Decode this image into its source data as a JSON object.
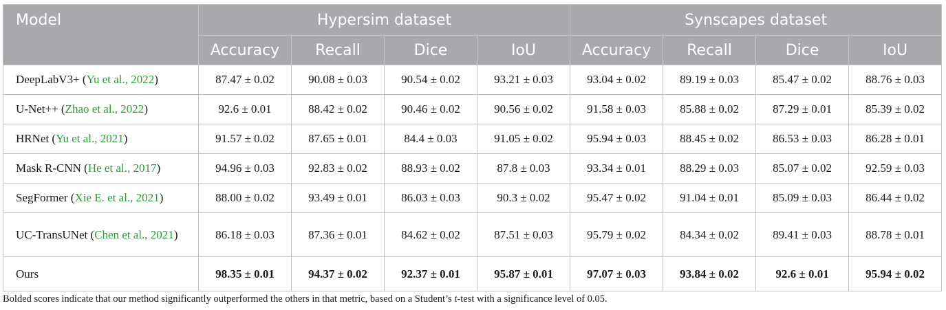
{
  "header": {
    "model": "Model",
    "groups": [
      "Hypersim dataset",
      "Synscapes dataset"
    ],
    "metrics": [
      "Accuracy",
      "Recall",
      "Dice",
      "IoU"
    ]
  },
  "rows": [
    {
      "name": "DeepLabV3+",
      "cite": "Yu et al., 2022",
      "cite_pre": "(",
      "cite_post": ")",
      "values": [
        "87.47 ± 0.02",
        "90.08 ± 0.03",
        "90.54 ± 0.02",
        "93.21 ± 0.03",
        "93.04 ± 0.02",
        "89.19 ± 0.03",
        "85.47 ± 0.02",
        "88.76 ± 0.03"
      ]
    },
    {
      "name": "U-Net++",
      "cite": "Zhao et al., 2022",
      "cite_pre": "(",
      "cite_post": ")",
      "values": [
        "92.6 ± 0.01",
        "88.42 ± 0.02",
        "90.46 ± 0.02",
        "90.56 ± 0.02",
        "91.58 ± 0.03",
        "85.88 ± 0.02",
        "87.29 ± 0.01",
        "85.39 ± 0.02"
      ]
    },
    {
      "name": "HRNet",
      "cite": "Yu et al., 2021",
      "cite_pre": "(",
      "cite_post": ")",
      "values": [
        "91.57 ± 0.02",
        "87.65 ± 0.01",
        "84.4 ± 0.03",
        "91.05 ± 0.02",
        "95.94 ± 0.03",
        "88.45 ± 0.02",
        "86.53 ± 0.03",
        "86.28 ± 0.01"
      ]
    },
    {
      "name": "Mask R-CNN",
      "cite": "He et al., 2017",
      "cite_pre": "(",
      "cite_post": ")",
      "values": [
        "94.96 ± 0.03",
        "92.83 ± 0.02",
        "88.93 ± 0.02",
        "87.8 ± 0.03",
        "93.34 ± 0.01",
        "88.29 ± 0.03",
        "85.07 ± 0.02",
        "92.59 ± 0.03"
      ]
    },
    {
      "name": "SegFormer",
      "cite": "Xie E. et al., 2021",
      "cite_pre": "(",
      "cite_post": ")",
      "values": [
        "88.00 ± 0.02",
        "93.49 ± 0.01",
        "86.03 ± 0.03",
        "90.3 ± 0.02",
        "95.47 ± 0.02",
        "91.04 ± 0.01",
        "85.09 ± 0.03",
        "86.44 ± 0.02"
      ]
    },
    {
      "name": "UC-TransUNet",
      "cite": "Chen et al., 2021",
      "cite_pre": "(",
      "cite_post": ")",
      "values": [
        "86.18 ± 0.03",
        "87.36 ± 0.01",
        "84.62 ± 0.02",
        "87.51 ± 0.03",
        "95.79 ± 0.02",
        "84.34 ± 0.02",
        "89.41 ± 0.03",
        "88.78 ± 0.01"
      ]
    }
  ],
  "ours": {
    "name": "Ours",
    "values": [
      "98.35 ± 0.01",
      "94.37 ± 0.02",
      "92.37 ± 0.01",
      "95.87 ± 0.01",
      "97.07 ± 0.03",
      "93.84 ± 0.02",
      "92.6 ± 0.01",
      "95.94 ± 0.02"
    ]
  },
  "footnote": {
    "before": "Bolded scores indicate that our method significantly outperformed the others in that metric, based on a Student’s ",
    "italic": "t",
    "after": "-test with a significance level of 0.05."
  },
  "colors": {
    "header_bg": "#a7a9ac",
    "citation": "#2e9b3a",
    "border": "#c4c4c4"
  }
}
